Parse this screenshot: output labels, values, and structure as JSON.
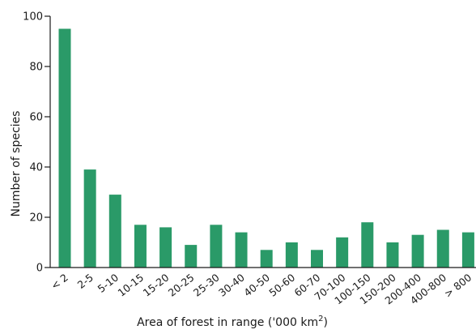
{
  "chart_data": {
    "type": "bar",
    "title": "",
    "xlabel": "Area of forest in range ('000 km",
    "xlabel_superscript": "2",
    "xlabel_suffix": ")",
    "ylabel": "Number of species",
    "ylim": [
      0,
      100
    ],
    "yticks": [
      0,
      20,
      40,
      60,
      80,
      100
    ],
    "grid": false,
    "legend": "none",
    "bar_color": "#2a9a68",
    "categories": [
      "< 2",
      "2-5",
      "5-10",
      "10-15",
      "15-20",
      "20-25",
      "25-30",
      "30-40",
      "40-50",
      "50-60",
      "60-70",
      "70-100",
      "100-150",
      "150-200",
      "200-400",
      "400-800",
      "> 800"
    ],
    "values": [
      95,
      39,
      29,
      17,
      16,
      9,
      17,
      14,
      7,
      10,
      7,
      12,
      18,
      10,
      13,
      15,
      14
    ]
  }
}
